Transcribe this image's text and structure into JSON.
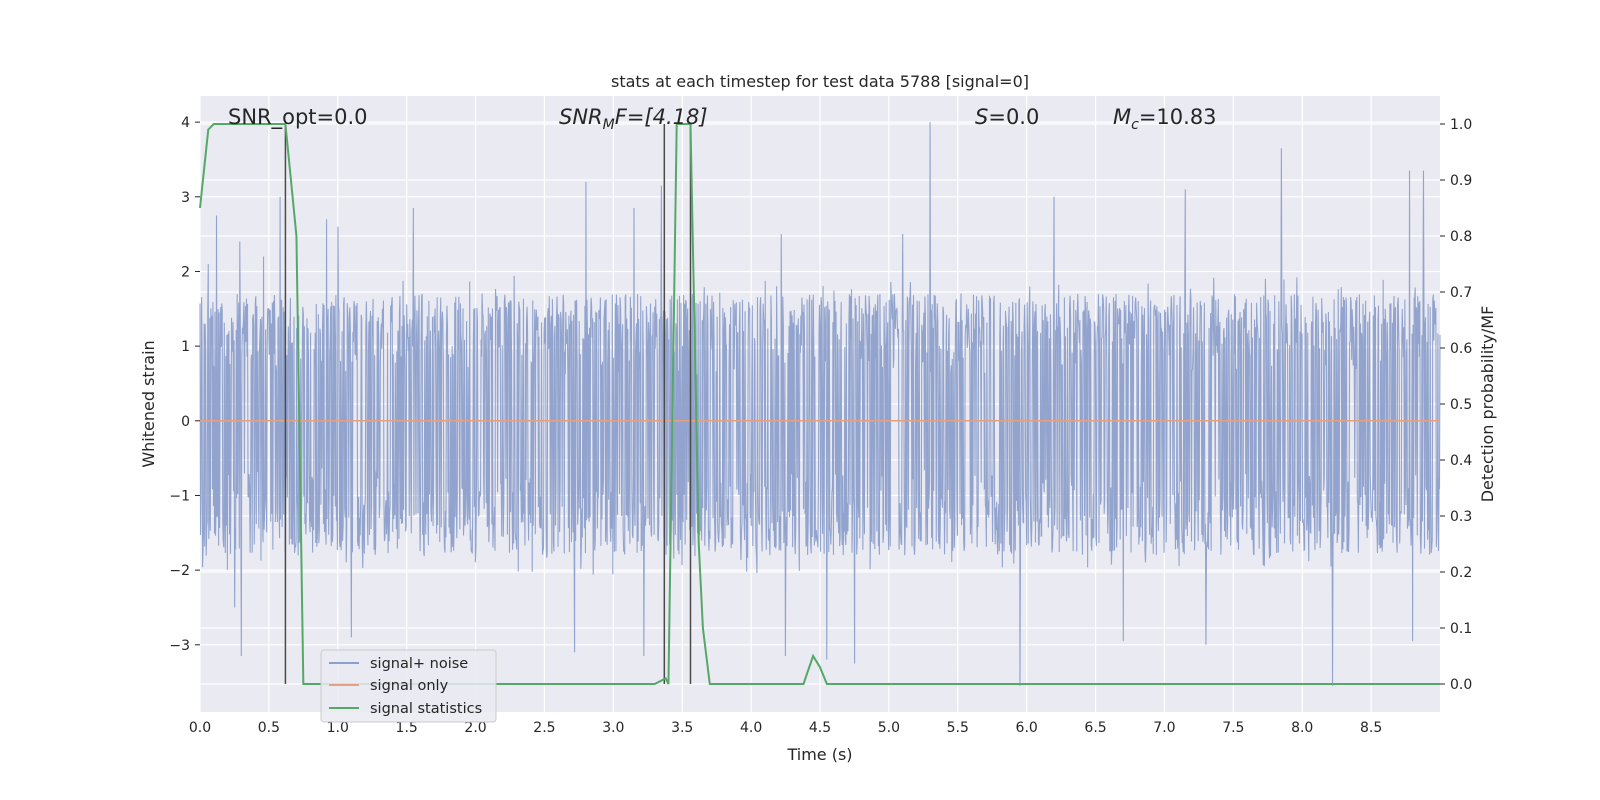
{
  "chart_data": {
    "type": "line",
    "title": "stats at each timestep for test data 5788 [signal=0]",
    "xlabel": "Time (s)",
    "ylabel_left": "Whitened strain",
    "ylabel_right": "Detection probability/MF",
    "xlim": [
      0.0,
      9.0
    ],
    "ylim_left": [
      -3.9,
      4.35
    ],
    "ylim_right": [
      -0.05,
      1.05
    ],
    "x_ticks": [
      "0.0",
      "0.5",
      "1.0",
      "1.5",
      "2.0",
      "2.5",
      "3.0",
      "3.5",
      "4.0",
      "4.5",
      "5.0",
      "5.5",
      "6.0",
      "6.5",
      "7.0",
      "7.5",
      "8.0",
      "8.5"
    ],
    "y_ticks_left": [
      "4",
      "3",
      "2",
      "1",
      "0",
      "−1",
      "−2",
      "−3"
    ],
    "y_ticks_right": [
      "1.0",
      "0.9",
      "0.8",
      "0.7",
      "0.6",
      "0.5",
      "0.4",
      "0.3",
      "0.2",
      "0.1",
      "0.0"
    ],
    "grid": true,
    "legend_position": "lower-left",
    "annotations": {
      "snr_opt": "SNR_opt=0.0",
      "snr_mf_main": "SNR",
      "snr_mf_sub": "M",
      "snr_mf_rest": "F=[4.18]",
      "s_main": "S",
      "s_rest": "=0.0",
      "mc_main": "M",
      "mc_sub": "c",
      "mc_rest": "=10.83"
    },
    "vertical_lines_x": [
      0.62,
      3.37,
      3.56
    ],
    "series": [
      {
        "name": "signal+ noise",
        "axis": "left",
        "color": "#8da0cb",
        "description_only": false,
        "envelope_upper_typical": 1.7,
        "envelope_lower_typical": -1.8,
        "spikes": [
          {
            "x": 0.06,
            "y": 2.1
          },
          {
            "x": 0.12,
            "y": 2.75
          },
          {
            "x": 0.29,
            "y": 2.4
          },
          {
            "x": 0.46,
            "y": 2.2
          },
          {
            "x": 0.58,
            "y": 3.0
          },
          {
            "x": 0.92,
            "y": 2.7
          },
          {
            "x": 1.0,
            "y": 2.6
          },
          {
            "x": 1.55,
            "y": 2.85
          },
          {
            "x": 2.72,
            "y": 3.3
          },
          {
            "x": 2.8,
            "y": 3.2
          },
          {
            "x": 3.15,
            "y": 2.85
          },
          {
            "x": 3.35,
            "y": 3.15
          },
          {
            "x": 4.22,
            "y": 2.5
          },
          {
            "x": 5.1,
            "y": 2.5
          },
          {
            "x": 5.3,
            "y": 4.0
          },
          {
            "x": 6.2,
            "y": 3.0
          },
          {
            "x": 7.15,
            "y": 3.1
          },
          {
            "x": 7.85,
            "y": 3.65
          },
          {
            "x": 8.78,
            "y": 3.35
          },
          {
            "x": 8.88,
            "y": 3.35
          },
          {
            "x": 0.3,
            "y": -3.15
          },
          {
            "x": 0.25,
            "y": -2.5
          },
          {
            "x": 1.1,
            "y": -2.9
          },
          {
            "x": 2.72,
            "y": -3.1
          },
          {
            "x": 3.22,
            "y": -3.15
          },
          {
            "x": 4.25,
            "y": -3.15
          },
          {
            "x": 4.55,
            "y": -3.2
          },
          {
            "x": 4.75,
            "y": -3.25
          },
          {
            "x": 5.95,
            "y": -3.55
          },
          {
            "x": 6.7,
            "y": -2.95
          },
          {
            "x": 7.3,
            "y": -3.0
          },
          {
            "x": 8.22,
            "y": -3.55
          },
          {
            "x": 8.8,
            "y": -2.95
          }
        ]
      },
      {
        "name": "signal only",
        "axis": "left",
        "color": "#e5a07f",
        "x": [
          0.0,
          9.0
        ],
        "y": [
          0.0,
          0.0
        ]
      },
      {
        "name": "signal statistics",
        "axis": "right",
        "color": "#55a868",
        "x": [
          0.0,
          0.06,
          0.1,
          0.15,
          0.3,
          0.62,
          0.68,
          0.7,
          0.75,
          0.8,
          1.5,
          2.5,
          3.3,
          3.38,
          3.4,
          3.46,
          3.5,
          3.56,
          3.62,
          3.65,
          3.7,
          4.0,
          4.38,
          4.45,
          4.5,
          4.55,
          5.0,
          6.0,
          7.0,
          8.0,
          9.0
        ],
        "y": [
          0.85,
          0.99,
          1.0,
          1.0,
          1.0,
          1.0,
          0.85,
          0.8,
          0.0,
          0.0,
          0.0,
          0.0,
          0.0,
          0.01,
          0.0,
          1.0,
          1.0,
          1.0,
          0.25,
          0.1,
          0.0,
          0.0,
          0.0,
          0.05,
          0.03,
          0.0,
          0.0,
          0.0,
          0.0,
          0.0,
          0.0
        ]
      }
    ]
  }
}
